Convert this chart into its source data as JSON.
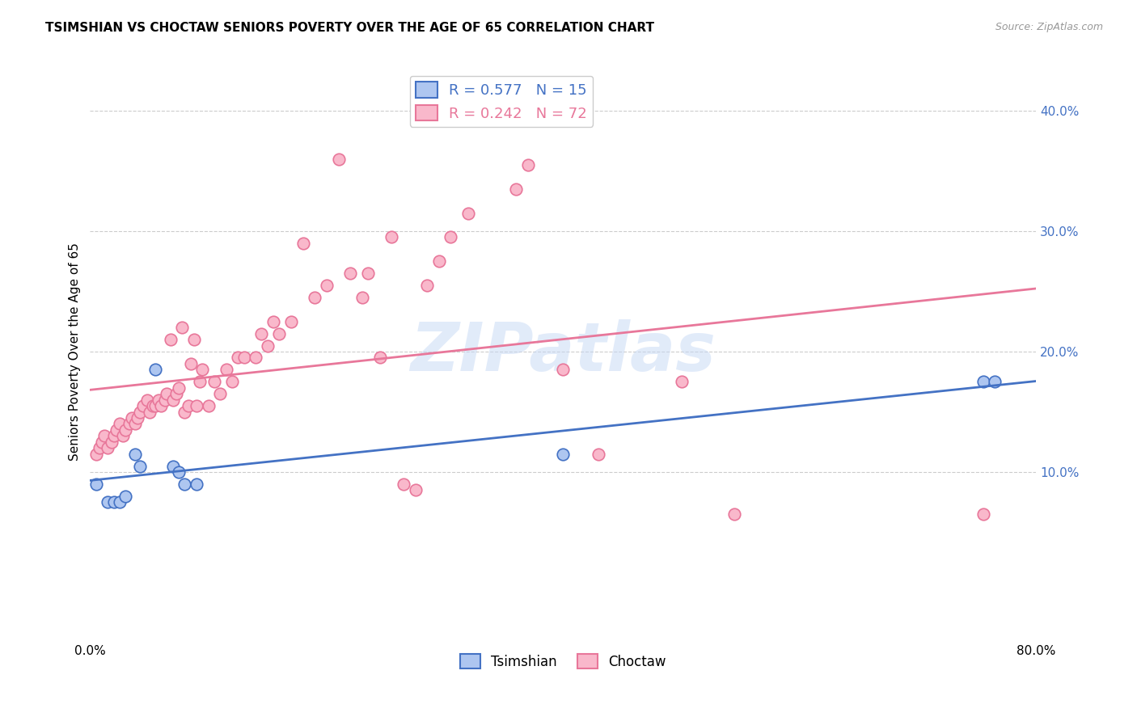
{
  "title": "TSIMSHIAN VS CHOCTAW SENIORS POVERTY OVER THE AGE OF 65 CORRELATION CHART",
  "source": "Source: ZipAtlas.com",
  "ylabel": "Seniors Poverty Over the Age of 65",
  "xlim": [
    0.0,
    0.8
  ],
  "ylim": [
    -0.04,
    0.44
  ],
  "yticks_right": [
    0.1,
    0.2,
    0.3,
    0.4
  ],
  "ytick_labels_right": [
    "10.0%",
    "20.0%",
    "30.0%",
    "40.0%"
  ],
  "legend_r_tsimshian": "0.577",
  "legend_n_tsimshian": "15",
  "legend_r_choctaw": "0.242",
  "legend_n_choctaw": "72",
  "tsimshian_fill": "#aec6f0",
  "choctaw_fill": "#f9b8cb",
  "tsimshian_edge": "#4472c4",
  "choctaw_edge": "#e8779a",
  "tsimshian_line": "#4472c4",
  "choctaw_line": "#e8779a",
  "watermark": "ZIPatlas",
  "tsimshian_x": [
    0.005,
    0.015,
    0.02,
    0.025,
    0.03,
    0.038,
    0.042,
    0.055,
    0.07,
    0.075,
    0.08,
    0.09,
    0.4,
    0.755,
    0.765
  ],
  "tsimshian_y": [
    0.09,
    0.075,
    0.075,
    0.075,
    0.08,
    0.115,
    0.105,
    0.185,
    0.105,
    0.1,
    0.09,
    0.09,
    0.115,
    0.175,
    0.175
  ],
  "choctaw_x": [
    0.005,
    0.008,
    0.01,
    0.012,
    0.015,
    0.018,
    0.02,
    0.022,
    0.025,
    0.028,
    0.03,
    0.033,
    0.035,
    0.038,
    0.04,
    0.042,
    0.045,
    0.048,
    0.05,
    0.053,
    0.055,
    0.058,
    0.06,
    0.063,
    0.065,
    0.068,
    0.07,
    0.073,
    0.075,
    0.078,
    0.08,
    0.083,
    0.085,
    0.088,
    0.09,
    0.093,
    0.095,
    0.1,
    0.105,
    0.11,
    0.115,
    0.12,
    0.125,
    0.13,
    0.14,
    0.145,
    0.15,
    0.155,
    0.16,
    0.17,
    0.18,
    0.19,
    0.2,
    0.21,
    0.22,
    0.23,
    0.235,
    0.245,
    0.255,
    0.265,
    0.275,
    0.285,
    0.295,
    0.305,
    0.32,
    0.36,
    0.37,
    0.4,
    0.43,
    0.5,
    0.545,
    0.755
  ],
  "choctaw_y": [
    0.115,
    0.12,
    0.125,
    0.13,
    0.12,
    0.125,
    0.13,
    0.135,
    0.14,
    0.13,
    0.135,
    0.14,
    0.145,
    0.14,
    0.145,
    0.15,
    0.155,
    0.16,
    0.15,
    0.155,
    0.155,
    0.16,
    0.155,
    0.16,
    0.165,
    0.21,
    0.16,
    0.165,
    0.17,
    0.22,
    0.15,
    0.155,
    0.19,
    0.21,
    0.155,
    0.175,
    0.185,
    0.155,
    0.175,
    0.165,
    0.185,
    0.175,
    0.195,
    0.195,
    0.195,
    0.215,
    0.205,
    0.225,
    0.215,
    0.225,
    0.29,
    0.245,
    0.255,
    0.36,
    0.265,
    0.245,
    0.265,
    0.195,
    0.295,
    0.09,
    0.085,
    0.255,
    0.275,
    0.295,
    0.315,
    0.335,
    0.355,
    0.185,
    0.115,
    0.175,
    0.065,
    0.065
  ]
}
